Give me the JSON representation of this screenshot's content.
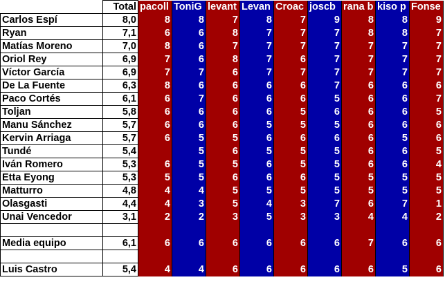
{
  "colors": {
    "red": "#a00000",
    "blue": "#0000a6"
  },
  "header": {
    "total_label": "Total",
    "voters": [
      "pacoll",
      "ToniG",
      "levant",
      "Levan",
      "Croac",
      "joscb",
      "rana b",
      "kiso p",
      "Fonse"
    ]
  },
  "players": [
    {
      "name": "Carlos Espí",
      "total": "8,0",
      "scores": [
        "8",
        "8",
        "7",
        "8",
        "7",
        "9",
        "8",
        "8",
        "9"
      ]
    },
    {
      "name": "Ryan",
      "total": "7,1",
      "scores": [
        "6",
        "6",
        "8",
        "7",
        "7",
        "7",
        "8",
        "8",
        "7"
      ]
    },
    {
      "name": "Matías Moreno",
      "total": "7,0",
      "scores": [
        "8",
        "6",
        "7",
        "7",
        "7",
        "7",
        "7",
        "7",
        "7"
      ]
    },
    {
      "name": "Oriol Rey",
      "total": "6,9",
      "scores": [
        "7",
        "6",
        "8",
        "7",
        "6",
        "7",
        "7",
        "7",
        "7"
      ]
    },
    {
      "name": "Víctor García",
      "total": "6,9",
      "scores": [
        "7",
        "7",
        "6",
        "7",
        "7",
        "7",
        "7",
        "7",
        "7"
      ]
    },
    {
      "name": "De La Fuente",
      "total": "6,3",
      "scores": [
        "8",
        "6",
        "6",
        "6",
        "6",
        "7",
        "6",
        "6",
        "6"
      ]
    },
    {
      "name": "Paco Cortés",
      "total": "6,1",
      "scores": [
        "6",
        "7",
        "6",
        "6",
        "6",
        "5",
        "6",
        "6",
        "7"
      ]
    },
    {
      "name": "Toljan",
      "total": "5,8",
      "scores": [
        "6",
        "6",
        "6",
        "6",
        "5",
        "6",
        "6",
        "6",
        "5"
      ]
    },
    {
      "name": "Manu Sánchez",
      "total": "5,7",
      "scores": [
        "6",
        "6",
        "6",
        "5",
        "5",
        "5",
        "6",
        "6",
        "6"
      ]
    },
    {
      "name": "Kervin Arriaga",
      "total": "5,7",
      "scores": [
        "6",
        "5",
        "5",
        "6",
        "6",
        "6",
        "6",
        "5",
        "6"
      ]
    },
    {
      "name": "Tundé",
      "total": "5,4",
      "scores": [
        "",
        "5",
        "6",
        "5",
        "5",
        "5",
        "6",
        "6",
        "5"
      ]
    },
    {
      "name": "Iván Romero",
      "total": "5,3",
      "scores": [
        "6",
        "5",
        "5",
        "6",
        "5",
        "5",
        "6",
        "6",
        "4"
      ]
    },
    {
      "name": "Etta Eyong",
      "total": "5,3",
      "scores": [
        "5",
        "5",
        "6",
        "6",
        "6",
        "5",
        "5",
        "5",
        "5"
      ]
    },
    {
      "name": "Matturro",
      "total": "4,8",
      "scores": [
        "4",
        "4",
        "5",
        "5",
        "5",
        "5",
        "5",
        "5",
        "5"
      ]
    },
    {
      "name": "Olasgasti",
      "total": "4,4",
      "scores": [
        "4",
        "3",
        "5",
        "4",
        "3",
        "7",
        "6",
        "7",
        "1"
      ]
    },
    {
      "name": "Unai Vencedor",
      "total": "3,1",
      "scores": [
        "2",
        "2",
        "3",
        "5",
        "3",
        "3",
        "4",
        "4",
        "2"
      ]
    }
  ],
  "team_average": {
    "name": "Media equipo",
    "total": "6,1",
    "scores": [
      "6",
      "6",
      "6",
      "6",
      "6",
      "6",
      "7",
      "6",
      "6"
    ]
  },
  "coach": {
    "name": "Luis Castro",
    "total": "5,4",
    "scores": [
      "4",
      "4",
      "6",
      "6",
      "6",
      "6",
      "6",
      "5",
      "6"
    ]
  }
}
